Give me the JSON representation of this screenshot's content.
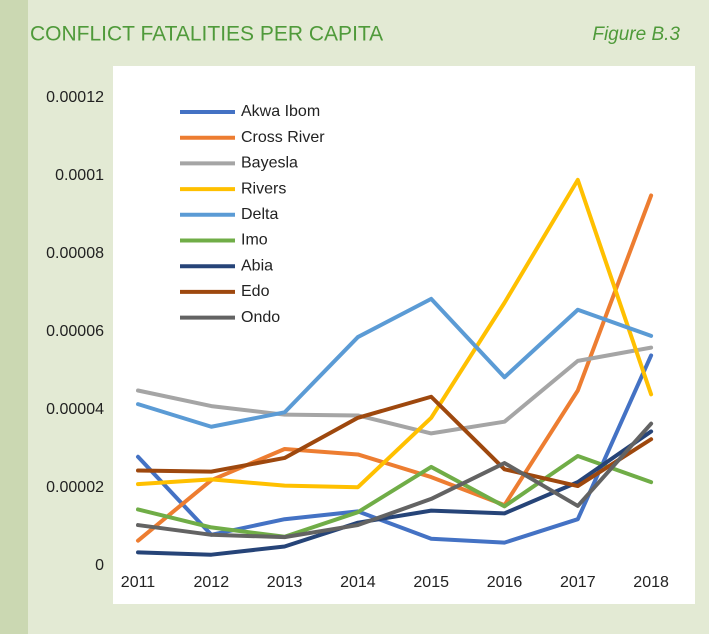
{
  "chart_data": {
    "type": "line",
    "title": "CONFLICT FATALITIES PER CAPITA",
    "subtitle": "Figure B.3",
    "categories": [
      "2011",
      "2012",
      "2013",
      "2014",
      "2015",
      "2016",
      "2017",
      "2018"
    ],
    "ylim": [
      0,
      0.00012
    ],
    "yticks": [
      0,
      2e-05,
      4e-05,
      6e-05,
      8e-05,
      0.0001,
      0.00012
    ],
    "legend": "upper left",
    "grid": false,
    "series": [
      {
        "name": "Akwa Ibom",
        "color": "#4472c4",
        "values": [
          2.8e-05,
          8e-06,
          1.2e-05,
          1.4e-05,
          7e-06,
          6e-06,
          1.2e-05,
          5.4e-05
        ]
      },
      {
        "name": "Cross River",
        "color": "#ed7d31",
        "values": [
          6.5e-06,
          2.2e-05,
          3e-05,
          2.86e-05,
          2.28e-05,
          1.56e-05,
          4.5e-05,
          9.5e-05
        ]
      },
      {
        "name": "Bayesla",
        "color": "#a5a5a5",
        "values": [
          4.5e-05,
          4.1e-05,
          3.88e-05,
          3.86e-05,
          3.4e-05,
          3.7e-05,
          5.26e-05,
          5.6e-05
        ]
      },
      {
        "name": "Rivers",
        "color": "#ffc000",
        "values": [
          2.1e-05,
          2.22e-05,
          2.06e-05,
          2.02e-05,
          3.8e-05,
          6.75e-05,
          9.9e-05,
          4.4e-05
        ]
      },
      {
        "name": "Delta",
        "color": "#5b9bd5",
        "values": [
          4.15e-05,
          3.57e-05,
          3.94e-05,
          5.87e-05,
          6.85e-05,
          4.84e-05,
          6.57e-05,
          5.9e-05
        ]
      },
      {
        "name": "Imo",
        "color": "#70ad47",
        "values": [
          1.45e-05,
          9.9e-06,
          7.5e-06,
          1.38e-05,
          2.54e-05,
          1.53e-05,
          2.82e-05,
          2.15e-05
        ]
      },
      {
        "name": "Abia",
        "color": "#264478",
        "values": [
          3.5e-06,
          2.9e-06,
          5e-06,
          1.11e-05,
          1.42e-05,
          1.35e-05,
          2.15e-05,
          3.45e-05
        ]
      },
      {
        "name": "Edo",
        "color": "#9e480e",
        "values": [
          2.45e-05,
          2.42e-05,
          2.77e-05,
          3.8e-05,
          4.34e-05,
          2.48e-05,
          2.05e-05,
          3.25e-05
        ]
      },
      {
        "name": "Ondo",
        "color": "#636363",
        "values": [
          1.05e-05,
          8e-06,
          7.4e-06,
          1.05e-05,
          1.72e-05,
          2.64e-05,
          1.54e-05,
          3.65e-05
        ]
      }
    ]
  }
}
